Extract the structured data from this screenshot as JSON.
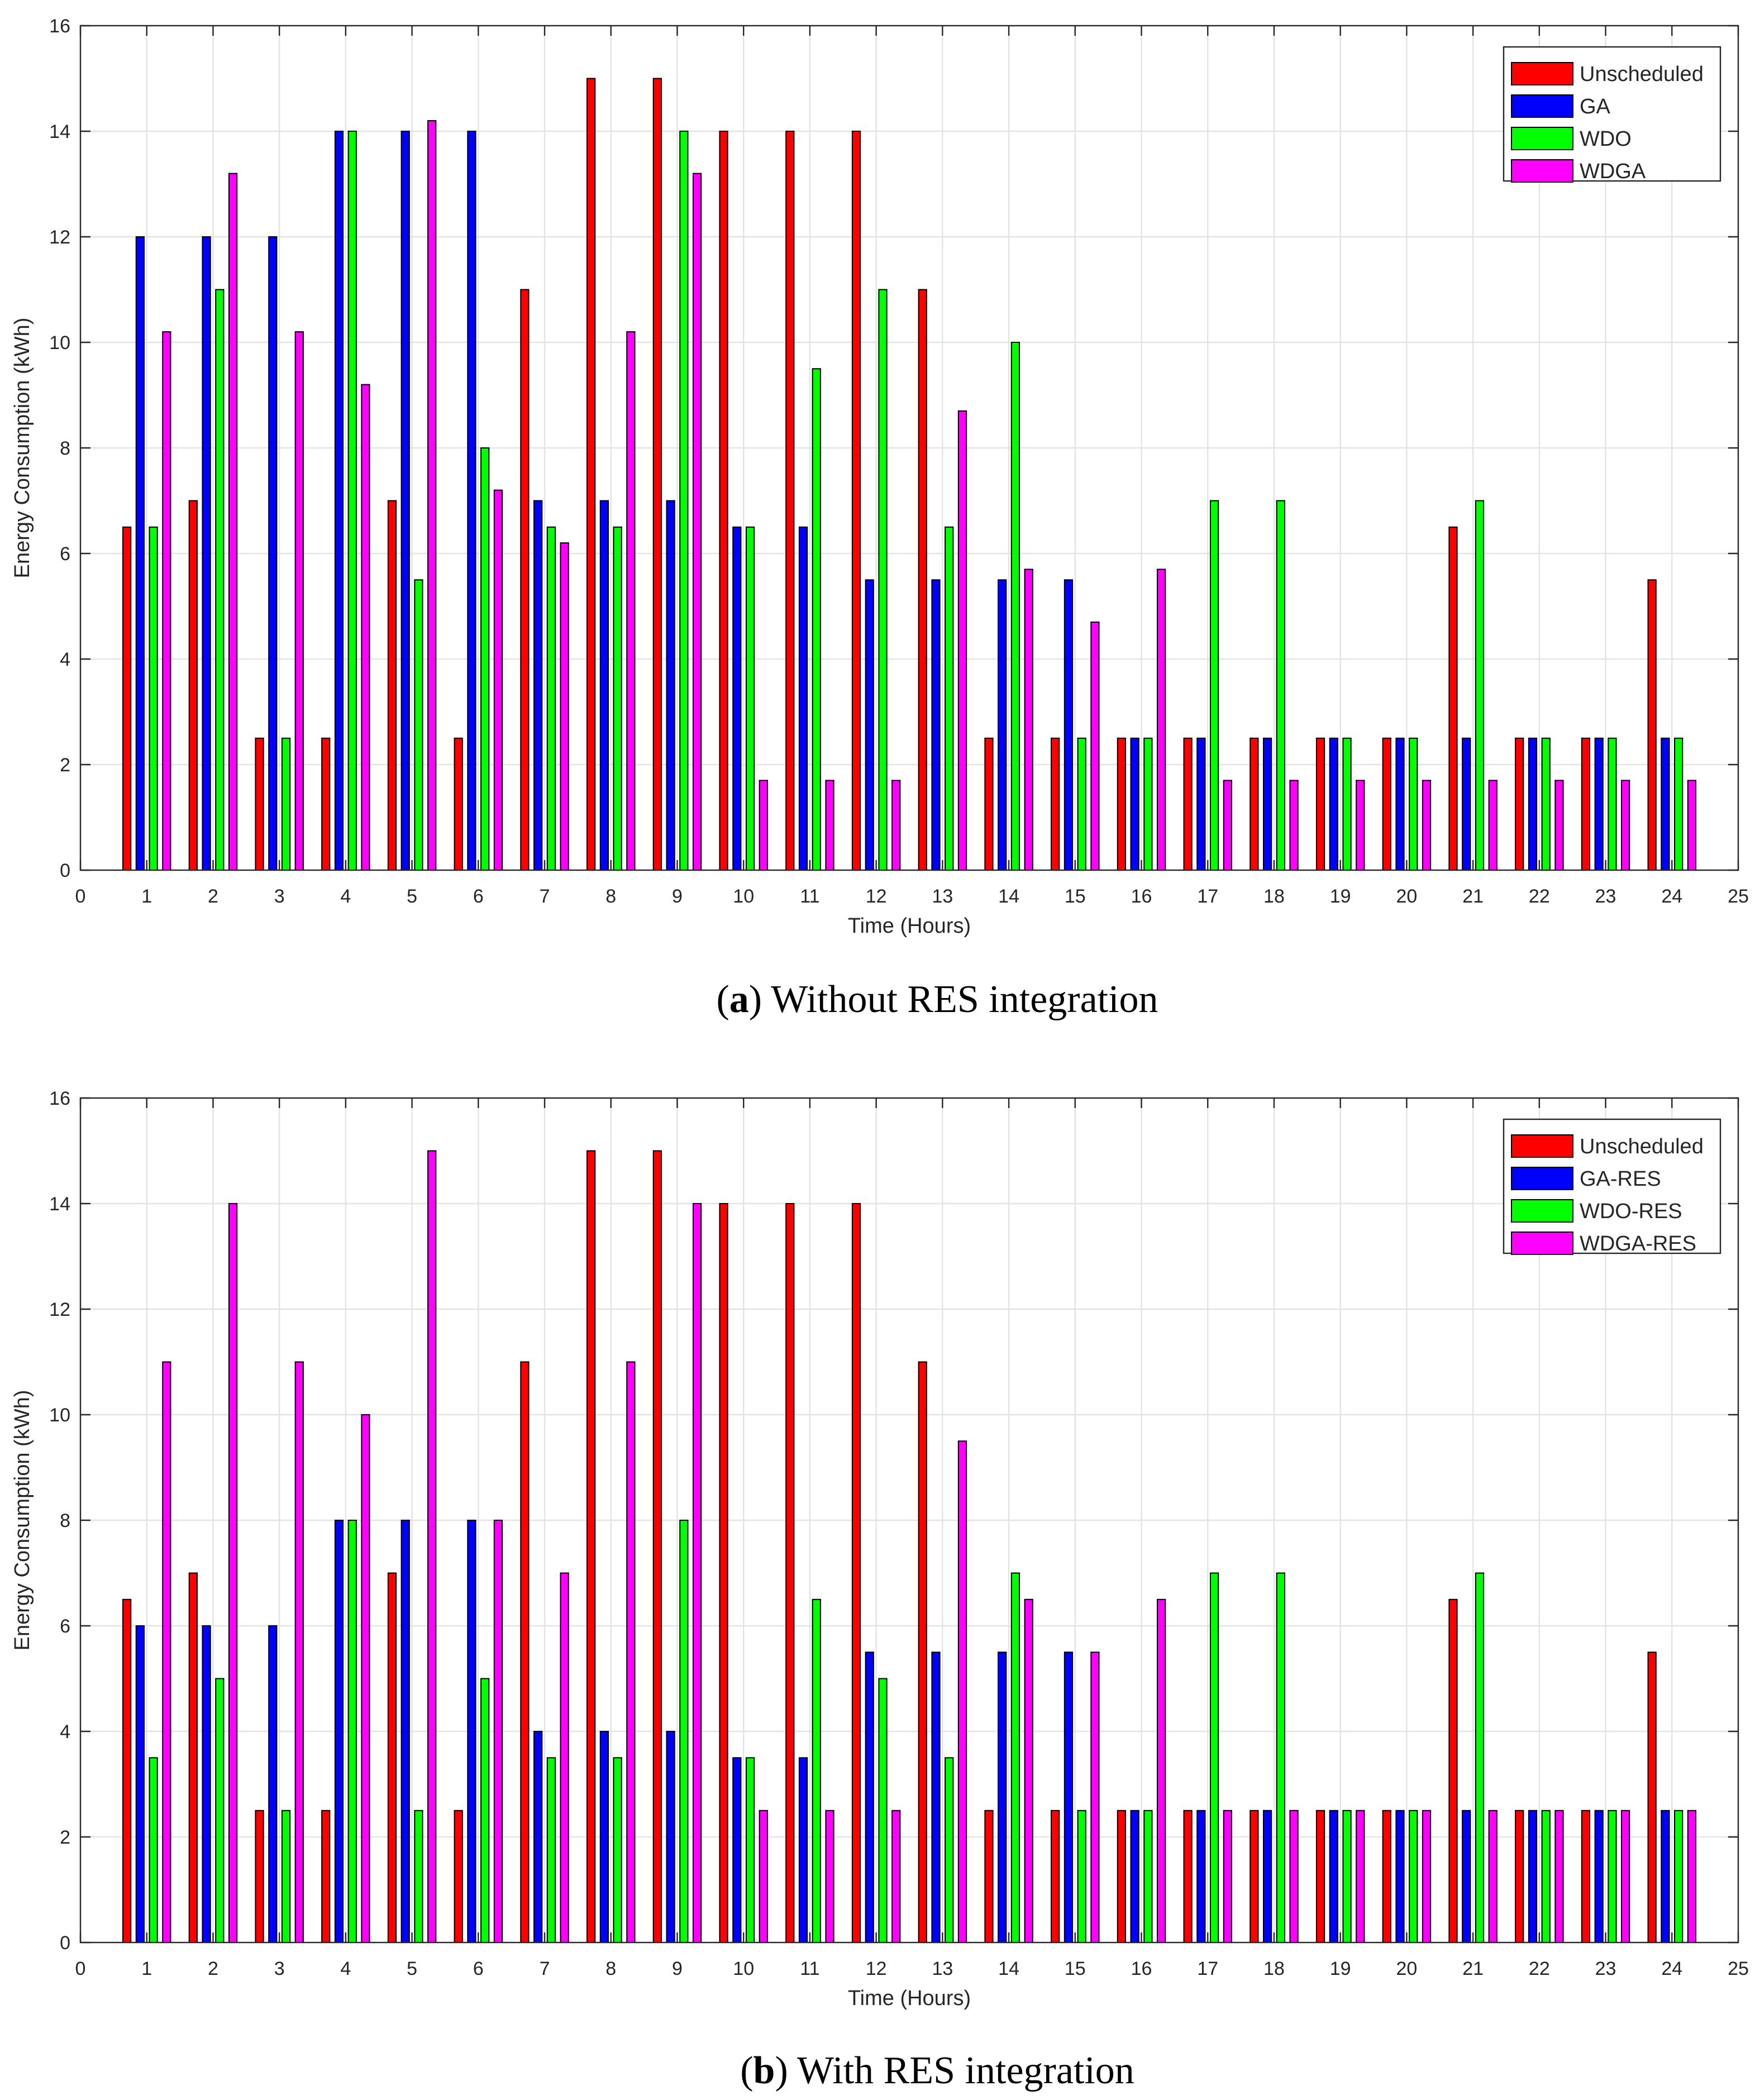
{
  "chart_data": [
    {
      "type": "bar",
      "caption": {
        "open": "(",
        "letter": "a",
        "text": ") Without RES integration"
      },
      "xlabel": "Time (Hours)",
      "ylabel": "Energy Consumption (kWh)",
      "xlim": [
        0,
        25
      ],
      "ylim": [
        0,
        16
      ],
      "xticks": [
        0,
        1,
        2,
        3,
        4,
        5,
        6,
        7,
        8,
        9,
        10,
        11,
        12,
        13,
        14,
        15,
        16,
        17,
        18,
        19,
        20,
        21,
        22,
        23,
        24,
        25
      ],
      "yticks": [
        0,
        2,
        4,
        6,
        8,
        10,
        12,
        14,
        16
      ],
      "grid": true,
      "legend_position": "top-right",
      "categories": [
        1,
        2,
        3,
        4,
        5,
        6,
        7,
        8,
        9,
        10,
        11,
        12,
        13,
        14,
        15,
        16,
        17,
        18,
        19,
        20,
        21,
        22,
        23,
        24
      ],
      "series": [
        {
          "name": "Unscheduled",
          "color": "#ff0000",
          "values": [
            6.5,
            7,
            2.5,
            2.5,
            7,
            2.5,
            11,
            15,
            15,
            14,
            14,
            14,
            11,
            2.5,
            2.5,
            2.5,
            2.5,
            2.5,
            2.5,
            2.5,
            6.5,
            2.5,
            2.5,
            5.5
          ]
        },
        {
          "name": "GA",
          "color": "#0000ff",
          "values": [
            12,
            12,
            12,
            14,
            14,
            14,
            7,
            7,
            7,
            6.5,
            6.5,
            5.5,
            5.5,
            5.5,
            5.5,
            2.5,
            2.5,
            2.5,
            2.5,
            2.5,
            2.5,
            2.5,
            2.5,
            2.5
          ]
        },
        {
          "name": "WDO",
          "color": "#00ff00",
          "values": [
            6.5,
            11,
            2.5,
            14,
            5.5,
            8,
            6.5,
            6.5,
            14,
            6.5,
            9.5,
            11,
            6.5,
            10,
            2.5,
            2.5,
            7,
            7,
            2.5,
            2.5,
            7,
            2.5,
            2.5,
            2.5
          ]
        },
        {
          "name": "WDGA",
          "color": "#ff00ff",
          "values": [
            10.2,
            13.2,
            10.2,
            9.2,
            14.2,
            7.2,
            6.2,
            10.2,
            13.2,
            1.7,
            1.7,
            1.7,
            8.7,
            5.7,
            4.7,
            5.7,
            1.7,
            1.7,
            1.7,
            1.7,
            1.7,
            1.7,
            1.7,
            1.7
          ]
        }
      ]
    },
    {
      "type": "bar",
      "caption": {
        "open": "(",
        "letter": "b",
        "text": ") With RES integration"
      },
      "xlabel": "Time (Hours)",
      "ylabel": "Energy Consumption (kWh)",
      "xlim": [
        0,
        25
      ],
      "ylim": [
        0,
        16
      ],
      "xticks": [
        0,
        1,
        2,
        3,
        4,
        5,
        6,
        7,
        8,
        9,
        10,
        11,
        12,
        13,
        14,
        15,
        16,
        17,
        18,
        19,
        20,
        21,
        22,
        23,
        24,
        25
      ],
      "yticks": [
        0,
        2,
        4,
        6,
        8,
        10,
        12,
        14,
        16
      ],
      "grid": true,
      "legend_position": "top-right",
      "categories": [
        1,
        2,
        3,
        4,
        5,
        6,
        7,
        8,
        9,
        10,
        11,
        12,
        13,
        14,
        15,
        16,
        17,
        18,
        19,
        20,
        21,
        22,
        23,
        24
      ],
      "series": [
        {
          "name": "Unscheduled",
          "color": "#ff0000",
          "values": [
            6.5,
            7,
            2.5,
            2.5,
            7,
            2.5,
            11,
            15,
            15,
            14,
            14,
            14,
            11,
            2.5,
            2.5,
            2.5,
            2.5,
            2.5,
            2.5,
            2.5,
            6.5,
            2.5,
            2.5,
            5.5
          ]
        },
        {
          "name": "GA-RES",
          "color": "#0000ff",
          "values": [
            6,
            6,
            6,
            8,
            8,
            8,
            4,
            4,
            4,
            3.5,
            3.5,
            5.5,
            5.5,
            5.5,
            5.5,
            2.5,
            2.5,
            2.5,
            2.5,
            2.5,
            2.5,
            2.5,
            2.5,
            2.5
          ]
        },
        {
          "name": "WDO-RES",
          "color": "#00ff00",
          "values": [
            3.5,
            5,
            2.5,
            8,
            2.5,
            5,
            3.5,
            3.5,
            8,
            3.5,
            6.5,
            5,
            3.5,
            7,
            2.5,
            2.5,
            7,
            7,
            2.5,
            2.5,
            7,
            2.5,
            2.5,
            2.5
          ]
        },
        {
          "name": "WDGA-RES",
          "color": "#ff00ff",
          "values": [
            11,
            14,
            11,
            10,
            15,
            8,
            7,
            11,
            14,
            2.5,
            2.5,
            2.5,
            9.5,
            6.5,
            5.5,
            6.5,
            2.5,
            2.5,
            2.5,
            2.5,
            2.5,
            2.5,
            2.5,
            2.5
          ]
        }
      ]
    }
  ]
}
